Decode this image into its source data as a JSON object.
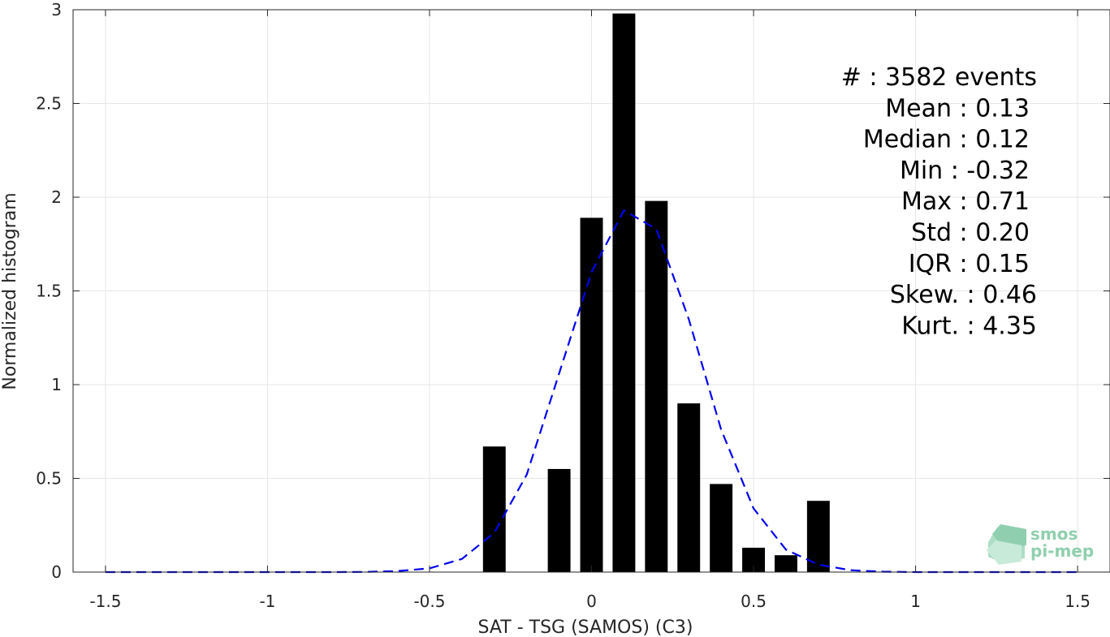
{
  "chart_data": {
    "type": "bar",
    "title": "",
    "xlabel": "SAT - TSG (SAMOS) (C3)",
    "ylabel": "Normalized histogram",
    "xlim": [
      -1.6,
      1.6
    ],
    "ylim": [
      0,
      3
    ],
    "grid": true,
    "x_ticks": [
      -1.5,
      -1,
      -0.5,
      0,
      0.5,
      1,
      1.5
    ],
    "x_tick_labels": [
      "-1.5",
      "-1",
      "-0.5",
      "0",
      "0.5",
      "1",
      "1.5"
    ],
    "y_ticks": [
      0,
      0.5,
      1,
      1.5,
      2,
      2.5,
      3
    ],
    "y_tick_labels": [
      "0",
      "0.5",
      "1",
      "1.5",
      "2",
      "2.5",
      "3"
    ],
    "bar_width": 0.07,
    "bars": {
      "x": [
        -0.3,
        -0.2,
        -0.1,
        0.0,
        0.1,
        0.2,
        0.3,
        0.4,
        0.5,
        0.6,
        0.7
      ],
      "values": [
        0.67,
        0,
        0.55,
        1.89,
        2.98,
        1.98,
        0.9,
        0.47,
        0.13,
        0.09,
        0.38
      ],
      "color": "#000000"
    },
    "fit_curve": {
      "style": "dashed",
      "color": "#0000ee",
      "x": [
        -1.5,
        -1.4,
        -1.3,
        -1.2,
        -1.1,
        -1.0,
        -0.9,
        -0.8,
        -0.7,
        -0.6,
        -0.5,
        -0.4,
        -0.3,
        -0.2,
        -0.1,
        0.0,
        0.1,
        0.2,
        0.3,
        0.4,
        0.5,
        0.6,
        0.7,
        0.8,
        0.9,
        1.0,
        1.1,
        1.2,
        1.3,
        1.4,
        1.5
      ],
      "y": [
        0,
        0,
        0,
        0,
        0,
        0,
        0,
        0,
        0.001,
        0.005,
        0.02,
        0.07,
        0.21,
        0.52,
        1.06,
        1.6,
        1.93,
        1.83,
        1.35,
        0.76,
        0.34,
        0.12,
        0.04,
        0.01,
        0.002,
        0,
        0,
        0,
        0,
        0,
        0
      ]
    },
    "annotations": [
      "#  : 3582 events",
      "Mean : 0.13",
      "Median : 0.12",
      "Min : -0.32",
      "Max : 0.71",
      "Std : 0.20",
      "IQR : 0.15",
      "Skew. : 0.46",
      "Kurt. : 4.35"
    ]
  },
  "logo": {
    "line1": "smos",
    "line2": "pi-mep"
  },
  "colors": {
    "axis": "#262626",
    "grid": "#e6e6e6",
    "bar": "#000000",
    "fit": "#0000ee"
  }
}
